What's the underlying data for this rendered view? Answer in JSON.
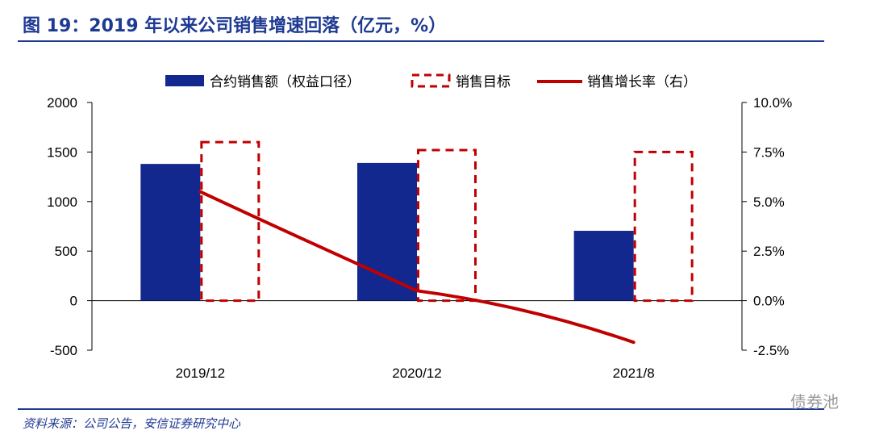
{
  "header": {
    "title": "图 19：2019 年以来公司销售增速回落（亿元，%）"
  },
  "footer": {
    "source": "资料来源：公司公告，安信证券研究中心",
    "watermark": "债券池"
  },
  "chart_data": {
    "type": "bar",
    "categories": [
      "2019/12",
      "2020/12",
      "2021/8"
    ],
    "series": [
      {
        "name": "合约销售额（权益口径）",
        "type": "bar",
        "axis": "left",
        "values": [
          1380,
          1390,
          705
        ]
      },
      {
        "name": "销售目标",
        "type": "bar-dashed",
        "axis": "left",
        "values": [
          1600,
          1520,
          1500
        ]
      },
      {
        "name": "销售增长率（右）",
        "type": "line",
        "axis": "right",
        "values": [
          5.5,
          0.5,
          -2.1
        ]
      }
    ],
    "y_left": {
      "min": -500,
      "max": 2000,
      "ticks": [
        2000,
        1500,
        1000,
        500,
        0,
        -500
      ]
    },
    "y_right": {
      "min": -2.5,
      "max": 10.0,
      "ticks": [
        "10.0%",
        "7.5%",
        "5.0%",
        "2.5%",
        "0.0%",
        "-2.5%"
      ]
    },
    "legend_position": "top",
    "colors": {
      "bar": "#13288f",
      "target": "#c00000",
      "line": "#c00000"
    },
    "grid": false
  }
}
